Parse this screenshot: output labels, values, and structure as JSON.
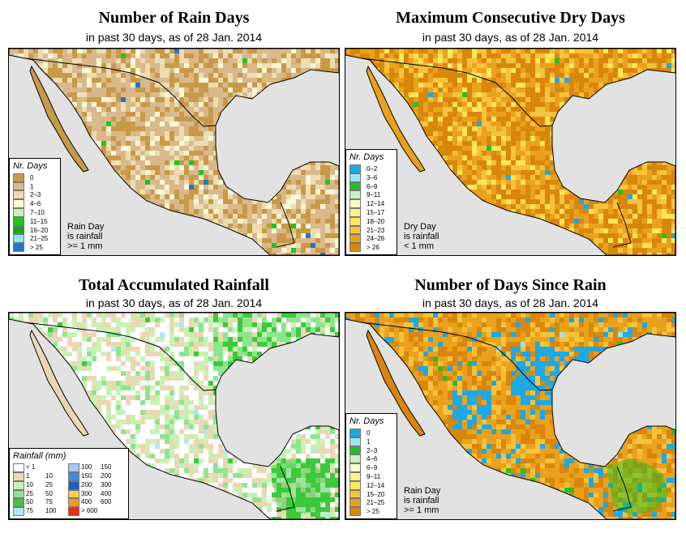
{
  "panels": [
    {
      "title": "Number of Rain Days",
      "subtitle": "in past 30 days, as of  28 Jan. 2014",
      "legend_title": "Nr. Days",
      "legend": [
        {
          "label": "0",
          "color": "#c89a47"
        },
        {
          "label": "1",
          "color": "#d9b98b"
        },
        {
          "label": "2–3",
          "color": "#eedcb3"
        },
        {
          "label": "4–6",
          "color": "#fdf9d6"
        },
        {
          "label": "7–10",
          "color": "#c8f3b4"
        },
        {
          "label": "11–15",
          "color": "#1fc41f"
        },
        {
          "label": "16–20",
          "color": "#11a811"
        },
        {
          "label": "21–25",
          "color": "#8ae8ee"
        },
        {
          "label": "> 25",
          "color": "#1f78c8"
        }
      ],
      "note": [
        "Rain Day",
        "is rainfall",
        ">= 1 mm"
      ],
      "palette": {
        "land": "#d9b98b",
        "dry": "#c89a47",
        "light": "#eedcb3",
        "pale": "#fdf9d6",
        "green": "#1fc41f",
        "blue": "#1f78c8"
      }
    },
    {
      "title": "Maximum Consecutive Dry Days",
      "subtitle": "in past 30 days, as of  28 Jan. 2014",
      "legend_title": "Nr. Days",
      "legend": [
        {
          "label": "0–2",
          "color": "#1ba9e8"
        },
        {
          "label": "3–6",
          "color": "#9ae6f5"
        },
        {
          "label": "6–9",
          "color": "#22c222"
        },
        {
          "label": "9–11",
          "color": "#bff5bf"
        },
        {
          "label": "12–14",
          "color": "#fdfbc8"
        },
        {
          "label": "15–17",
          "color": "#fdf38a"
        },
        {
          "label": "18–20",
          "color": "#fde85a"
        },
        {
          "label": "21–23",
          "color": "#f8c33c"
        },
        {
          "label": "24–26",
          "color": "#eaa21c"
        },
        {
          "label": "> 26",
          "color": "#d9870b"
        }
      ],
      "note": [
        "Dry Day",
        "is rainfall",
        "< 1 mm"
      ],
      "palette": {
        "land": "#d9870b",
        "dry": "#eaa21c",
        "light": "#f8c33c",
        "pale": "#fde85a",
        "green": "#22c222",
        "blue": "#1ba9e8"
      }
    },
    {
      "title": "Total Accumulated Rainfall",
      "subtitle": "in past 30 days, as of  28 Jan. 2014",
      "legend_title": "Rainfall (mm)",
      "legend_rows": [
        {
          "c1": "#ffffff",
          "lo1": "< 1",
          "hi1": "",
          "c2": "#9acdf0",
          "lo2": "100",
          "hi2": "150"
        },
        {
          "c1": "#ecd7b4",
          "lo1": "1",
          "hi1": "10",
          "c2": "#3b8fe0",
          "lo2": "150",
          "hi2": "200"
        },
        {
          "c1": "#c8f2b4",
          "lo1": "10",
          "hi1": "25",
          "c2": "#1c5fc8",
          "lo2": "200",
          "hi2": "300"
        },
        {
          "c1": "#8de68d",
          "lo1": "25",
          "hi1": "50",
          "c2": "#fbd24a",
          "lo2": "300",
          "hi2": "400"
        },
        {
          "c1": "#3cc93c",
          "lo1": "50",
          "hi1": "75",
          "c2": "#f59a1e",
          "lo2": "400",
          "hi2": "600"
        },
        {
          "c1": "#aee8f5",
          "lo1": "75",
          "hi1": "100",
          "c2": "#e8300e",
          "lo2": "> 600",
          "hi2": ""
        }
      ],
      "palette": {
        "land": "#ffffff",
        "dry": "#ecd7b4",
        "light": "#c8f2b4",
        "pale": "#8de68d",
        "green": "#3cc93c",
        "blue": "#aee8f5"
      }
    },
    {
      "title": "Number of Days Since Rain",
      "subtitle": "in past 30 days, as of  28 Jan. 2014",
      "legend_title": "Nr. Days",
      "legend": [
        {
          "label": "0",
          "color": "#1ba9e8"
        },
        {
          "label": "1",
          "color": "#9ae6f5"
        },
        {
          "label": "2–3",
          "color": "#22c222"
        },
        {
          "label": "4–6",
          "color": "#bff5bf"
        },
        {
          "label": "6–9",
          "color": "#fdfbc8"
        },
        {
          "label": "9–11",
          "color": "#fdf38a"
        },
        {
          "label": "12–14",
          "color": "#fde85a"
        },
        {
          "label": "15–20",
          "color": "#f8c33c"
        },
        {
          "label": "21–25",
          "color": "#eaa21c"
        },
        {
          "label": "> 25",
          "color": "#d9870b"
        }
      ],
      "note": [
        "Rain Day",
        "is rainfall",
        ">= 1 mm"
      ],
      "palette": {
        "land": "#eaa21c",
        "dry": "#d9870b",
        "light": "#f8c33c",
        "pale": "#1ba9e8",
        "green": "#22c222",
        "blue": "#9ae6f5"
      }
    }
  ]
}
